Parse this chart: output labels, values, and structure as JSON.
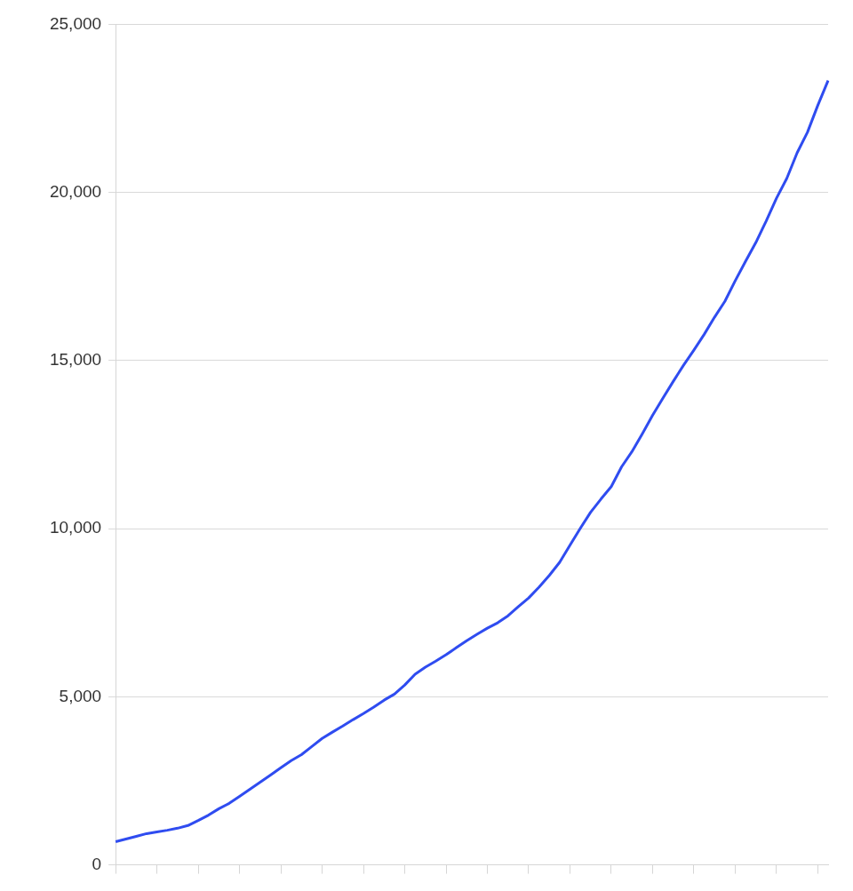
{
  "chart_data": {
    "type": "line",
    "categories": [
      null,
      null,
      null,
      null,
      null,
      null,
      null,
      null,
      null,
      null,
      null,
      null,
      null,
      null,
      null,
      null,
      null,
      null,
      null,
      null,
      null,
      null,
      null,
      null,
      null,
      null,
      null,
      null,
      null,
      null,
      null,
      null,
      null,
      null,
      null,
      null,
      null,
      null,
      null,
      null,
      null,
      null,
      null,
      null,
      null,
      null,
      null,
      null,
      null,
      null,
      null,
      null,
      null,
      null,
      null,
      null,
      null,
      null,
      null,
      null,
      null,
      null,
      null,
      null,
      null,
      null,
      null,
      null,
      null,
      null
    ],
    "series": [
      {
        "color": "#2f4cf0",
        "values": [
          690,
          770,
          850,
          930,
          980,
          1030,
          1090,
          1170,
          1320,
          1480,
          1670,
          1830,
          2040,
          2250,
          2460,
          2670,
          2890,
          3100,
          3280,
          3520,
          3760,
          3950,
          4130,
          4320,
          4500,
          4690,
          4900,
          5080,
          5350,
          5670,
          5880,
          6060,
          6250,
          6460,
          6670,
          6860,
          7040,
          7200,
          7410,
          7680,
          7940,
          8260,
          8610,
          9000,
          9510,
          10010,
          10490,
          10880,
          11250,
          11840,
          12290,
          12820,
          13370,
          13880,
          14380,
          14860,
          15310,
          15780,
          16290,
          16760,
          17370,
          17950,
          18510,
          19150,
          19830,
          20420,
          21180,
          21790,
          22590,
          23330
        ]
      }
    ],
    "ylim": [
      0,
      25000
    ],
    "yticks": [
      0,
      {
        "value": 5000,
        "label": "5,000"
      },
      {
        "value": 10000,
        "label": "10,000"
      },
      {
        "value": 15000,
        "label": "15,000"
      },
      {
        "value": 20000,
        "label": "20,000"
      },
      {
        "value": 25000,
        "label": "25,000"
      }
    ],
    "grid": "y",
    "legend": false,
    "marker": "none",
    "line_style": "solid",
    "tick_labels": "y"
  }
}
